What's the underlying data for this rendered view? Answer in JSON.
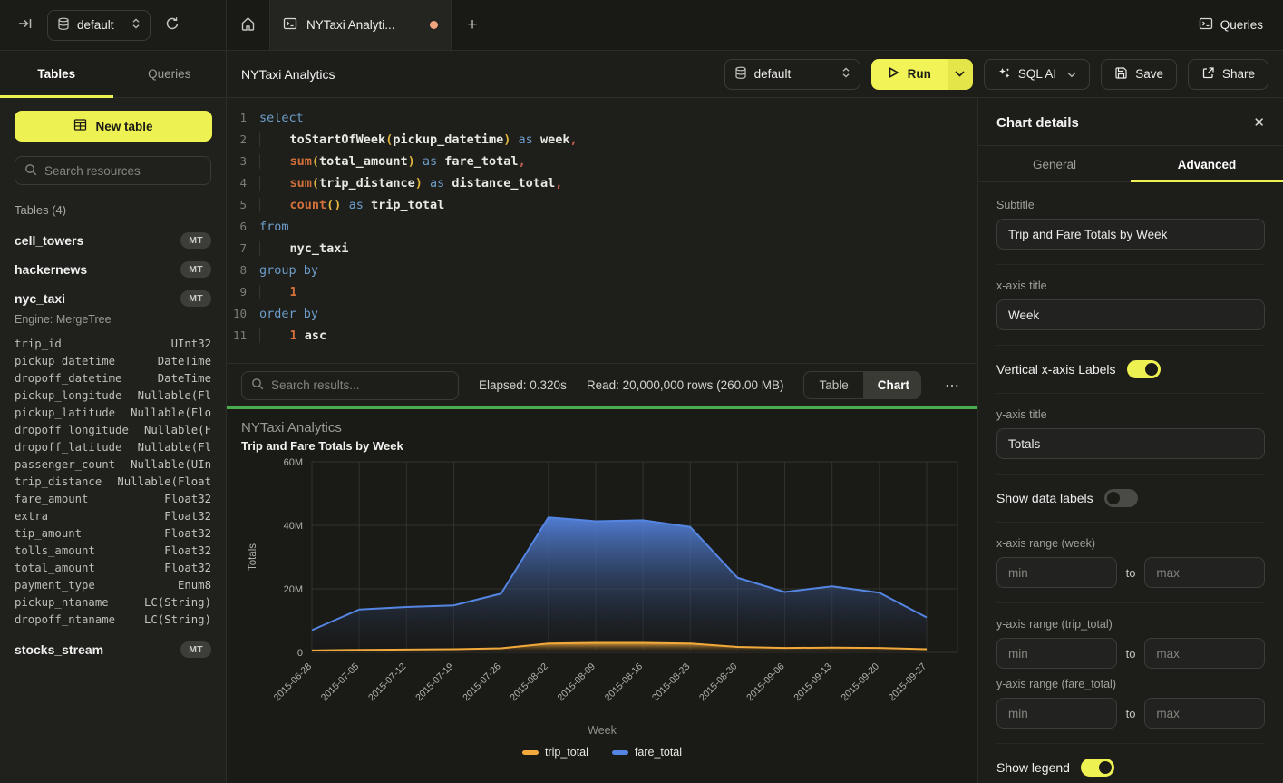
{
  "topbar": {
    "database": "default",
    "tab_title": "NYTaxi Analyti...",
    "queries_label": "Queries"
  },
  "sidebar": {
    "tab_tables": "Tables",
    "tab_queries": "Queries",
    "new_table_label": "New table",
    "search_placeholder": "Search resources",
    "tables_header": "Tables (4)",
    "tables": [
      {
        "name": "cell_towers",
        "badge": "MT"
      },
      {
        "name": "hackernews",
        "badge": "MT"
      },
      {
        "name": "nyc_taxi",
        "badge": "MT"
      },
      {
        "name": "stocks_stream",
        "badge": "MT"
      }
    ],
    "nyc_taxi_engine": "Engine: MergeTree",
    "columns": [
      {
        "name": "trip_id",
        "type": "UInt32"
      },
      {
        "name": "pickup_datetime",
        "type": "DateTime"
      },
      {
        "name": "dropoff_datetime",
        "type": "DateTime"
      },
      {
        "name": "pickup_longitude",
        "type": "Nullable(Fl"
      },
      {
        "name": "pickup_latitude",
        "type": "Nullable(Flo"
      },
      {
        "name": "dropoff_longitude",
        "type": "Nullable(F"
      },
      {
        "name": "dropoff_latitude",
        "type": "Nullable(Fl"
      },
      {
        "name": "passenger_count",
        "type": "Nullable(UIn"
      },
      {
        "name": "trip_distance",
        "type": "Nullable(Float"
      },
      {
        "name": "fare_amount",
        "type": "Float32"
      },
      {
        "name": "extra",
        "type": "Float32"
      },
      {
        "name": "tip_amount",
        "type": "Float32"
      },
      {
        "name": "tolls_amount",
        "type": "Float32"
      },
      {
        "name": "total_amount",
        "type": "Float32"
      },
      {
        "name": "payment_type",
        "type": "Enum8"
      },
      {
        "name": "pickup_ntaname",
        "type": "LC(String)"
      },
      {
        "name": "dropoff_ntaname",
        "type": "LC(String)"
      }
    ]
  },
  "query_toolbar": {
    "title": "NYTaxi Analytics",
    "database": "default",
    "run_label": "Run",
    "sql_ai_label": "SQL AI",
    "save_label": "Save",
    "share_label": "Share"
  },
  "editor": {
    "lines": [
      {
        "num": "1",
        "tokens": [
          [
            "kw",
            "select"
          ]
        ]
      },
      {
        "num": "2",
        "tokens": [
          [
            "ind",
            "    "
          ],
          [
            "id",
            "toStartOfWeek"
          ],
          [
            "br",
            "("
          ],
          [
            "id",
            "pickup_datetime"
          ],
          [
            "br",
            ")"
          ],
          [
            "pl",
            " "
          ],
          [
            "kw",
            "as"
          ],
          [
            "pl",
            " "
          ],
          [
            "id",
            "week"
          ],
          [
            "cm",
            ","
          ]
        ]
      },
      {
        "num": "3",
        "tokens": [
          [
            "ind",
            "    "
          ],
          [
            "fn",
            "sum"
          ],
          [
            "br",
            "("
          ],
          [
            "id",
            "total_amount"
          ],
          [
            "br",
            ")"
          ],
          [
            "pl",
            " "
          ],
          [
            "kw",
            "as"
          ],
          [
            "pl",
            " "
          ],
          [
            "id",
            "fare_total"
          ],
          [
            "cm",
            ","
          ]
        ]
      },
      {
        "num": "4",
        "tokens": [
          [
            "ind",
            "    "
          ],
          [
            "fn",
            "sum"
          ],
          [
            "br",
            "("
          ],
          [
            "id",
            "trip_distance"
          ],
          [
            "br",
            ")"
          ],
          [
            "pl",
            " "
          ],
          [
            "kw",
            "as"
          ],
          [
            "pl",
            " "
          ],
          [
            "id",
            "distance_total"
          ],
          [
            "cm",
            ","
          ]
        ]
      },
      {
        "num": "5",
        "tokens": [
          [
            "ind",
            "    "
          ],
          [
            "fn",
            "count"
          ],
          [
            "br",
            "()"
          ],
          [
            "pl",
            " "
          ],
          [
            "kw",
            "as"
          ],
          [
            "pl",
            " "
          ],
          [
            "id",
            "trip_total"
          ]
        ]
      },
      {
        "num": "6",
        "tokens": [
          [
            "kw",
            "from"
          ]
        ]
      },
      {
        "num": "7",
        "tokens": [
          [
            "ind",
            "    "
          ],
          [
            "id",
            "nyc_taxi"
          ]
        ]
      },
      {
        "num": "8",
        "tokens": [
          [
            "kw",
            "group by"
          ]
        ]
      },
      {
        "num": "9",
        "tokens": [
          [
            "ind",
            "    "
          ],
          [
            "num",
            "1"
          ]
        ]
      },
      {
        "num": "10",
        "tokens": [
          [
            "kw",
            "order by"
          ]
        ]
      },
      {
        "num": "11",
        "tokens": [
          [
            "ind",
            "    "
          ],
          [
            "num",
            "1"
          ],
          [
            "pl",
            " "
          ],
          [
            "id",
            "asc"
          ]
        ]
      }
    ]
  },
  "results": {
    "search_placeholder": "Search results...",
    "elapsed": "Elapsed: 0.320s",
    "read": "Read: 20,000,000 rows (260.00 MB)",
    "table_label": "Table",
    "chart_label": "Chart",
    "more_label": "⋯"
  },
  "chart_data": {
    "type": "area",
    "title": "NYTaxi Analytics",
    "subtitle": "Trip and Fare Totals by Week",
    "xlabel": "Week",
    "ylabel": "Totals",
    "x": [
      "2015-06-28",
      "2015-07-05",
      "2015-07-12",
      "2015-07-19",
      "2015-07-26",
      "2015-08-02",
      "2015-08-09",
      "2015-08-16",
      "2015-08-23",
      "2015-08-30",
      "2015-09-06",
      "2015-09-13",
      "2015-09-20",
      "2015-09-27"
    ],
    "series": [
      {
        "name": "trip_total",
        "color": "#f2a93b",
        "values": [
          600000,
          800000,
          900000,
          1000000,
          1300000,
          2800000,
          3000000,
          3000000,
          2800000,
          1700000,
          1400000,
          1500000,
          1400000,
          1000000
        ]
      },
      {
        "name": "fare_total",
        "color": "#5585e2",
        "values": [
          7000000,
          13500000,
          14300000,
          14800000,
          18500000,
          42500000,
          41300000,
          41600000,
          39500000,
          23500000,
          19000000,
          20800000,
          18800000,
          11000000
        ]
      }
    ],
    "ylim": [
      0,
      60000000
    ],
    "yticks": [
      {
        "v": 0,
        "label": "0"
      },
      {
        "v": 20000000,
        "label": "20M"
      },
      {
        "v": 40000000,
        "label": "40M"
      },
      {
        "v": 60000000,
        "label": "60M"
      }
    ],
    "grid": true,
    "legend_position": "bottom"
  },
  "panel": {
    "title": "Chart details",
    "tab_general": "General",
    "tab_advanced": "Advanced",
    "subtitle_label": "Subtitle",
    "subtitle_value": "Trip and Fare Totals by Week",
    "xaxis_title_label": "x-axis title",
    "xaxis_title_value": "Week",
    "vertical_labels_label": "Vertical x-axis Labels",
    "yaxis_title_label": "y-axis title",
    "yaxis_title_value": "Totals",
    "show_data_labels_label": "Show data labels",
    "xaxis_range_label": "x-axis range (week)",
    "yaxis_range_trip_label": "y-axis range (trip_total)",
    "yaxis_range_fare_label": "y-axis range (fare_total)",
    "min_placeholder": "min",
    "max_placeholder": "max",
    "to_label": "to",
    "show_legend_label": "Show legend",
    "close_label": "✕"
  }
}
